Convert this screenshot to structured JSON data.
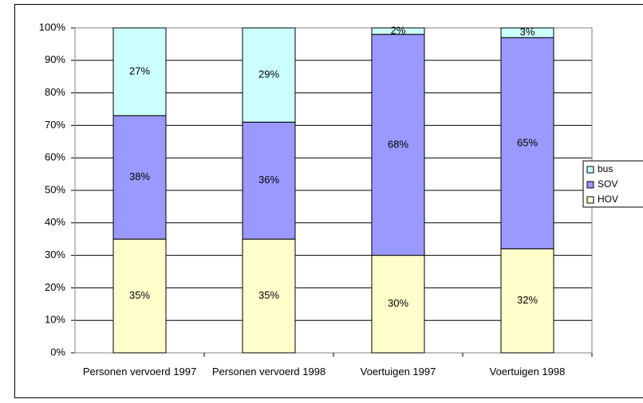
{
  "chart_data": {
    "type": "stacked_bar",
    "categories": [
      "Personen vervoerd 1997",
      "Personen vervoerd 1998",
      "Voertuigen 1997",
      "Voertuigen 1998"
    ],
    "series": [
      {
        "name": "HOV",
        "color": "#ffffcc",
        "values": [
          35,
          35,
          30,
          32
        ],
        "value_labels": [
          "35%",
          "35%",
          "30%",
          "32%"
        ]
      },
      {
        "name": "SOV",
        "color": "#9999ff",
        "values": [
          38,
          36,
          68,
          65
        ],
        "value_labels": [
          "38%",
          "36%",
          "68%",
          "65%"
        ]
      },
      {
        "name": "bus",
        "color": "#ccffff",
        "values": [
          27,
          29,
          2,
          3
        ],
        "value_labels": [
          "27%",
          "29%",
          "2%",
          "3%"
        ]
      }
    ],
    "ylim": [
      0,
      100
    ],
    "yticks": [
      {
        "value": 0,
        "label": "0%"
      },
      {
        "value": 10,
        "label": "10%"
      },
      {
        "value": 20,
        "label": "20%"
      },
      {
        "value": 30,
        "label": "30%"
      },
      {
        "value": 40,
        "label": "40%"
      },
      {
        "value": 50,
        "label": "50%"
      },
      {
        "value": 60,
        "label": "60%"
      },
      {
        "value": 70,
        "label": "70%"
      },
      {
        "value": 80,
        "label": "80%"
      },
      {
        "value": 90,
        "label": "90%"
      },
      {
        "value": 100,
        "label": "100%"
      }
    ],
    "grid": true,
    "legend": "right"
  }
}
